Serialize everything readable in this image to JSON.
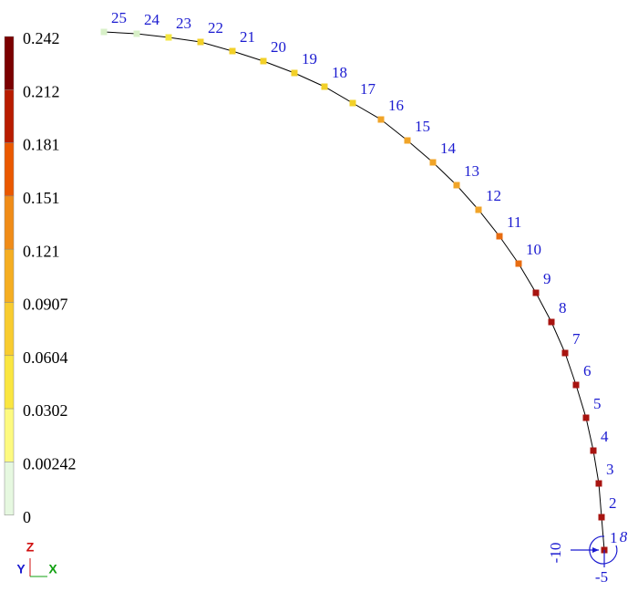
{
  "legend": {
    "labels": [
      "0.242",
      "0.212",
      "0.181",
      "0.151",
      "0.121",
      "0.0907",
      "0.0604",
      "0.0302",
      "0.00242",
      "0"
    ]
  },
  "nodes": [
    "1",
    "2",
    "3",
    "4",
    "5",
    "6",
    "7",
    "8",
    "9",
    "10",
    "11",
    "12",
    "13",
    "14",
    "15",
    "16",
    "17",
    "18",
    "19",
    "20",
    "21",
    "22",
    "23",
    "24",
    "25"
  ],
  "support": {
    "horizontal": "-10",
    "rotation": "8",
    "vertical": "-5"
  },
  "triad": {
    "z": "Z",
    "y": "Y",
    "x": "X"
  }
}
